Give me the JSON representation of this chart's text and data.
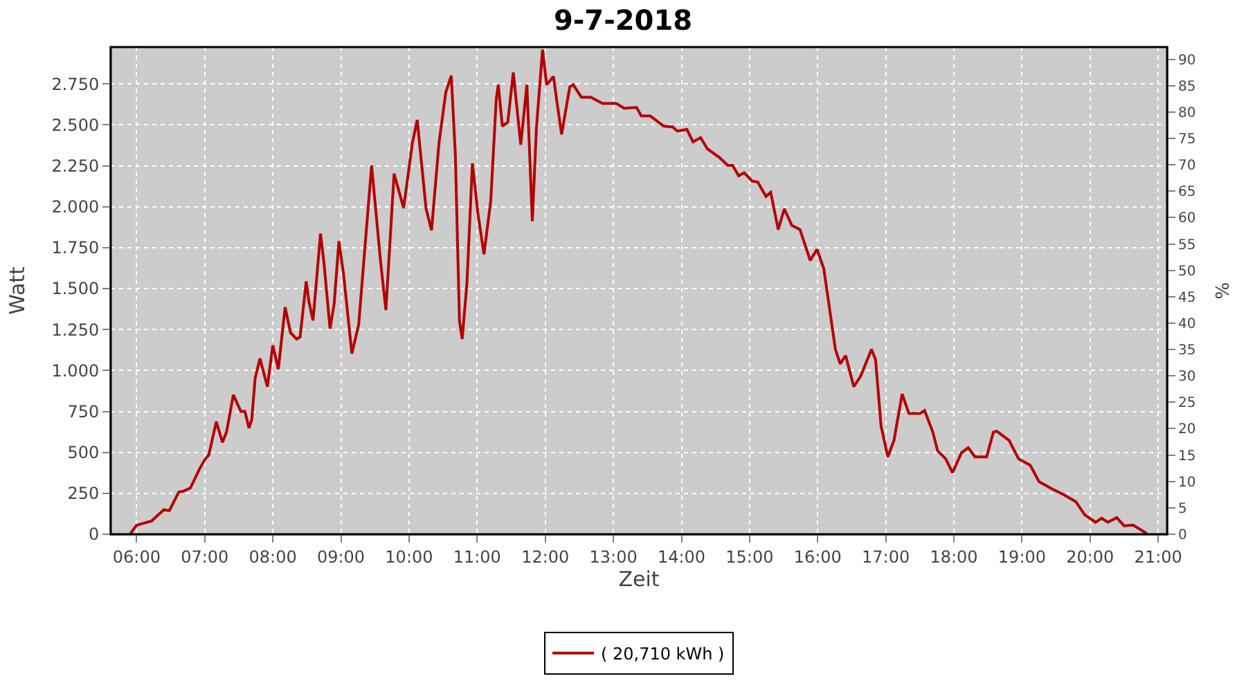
{
  "chart_data": {
    "type": "line",
    "title": "9-7-2018",
    "xlabel": "Zeit",
    "ylabel": "Watt",
    "y2label": "%",
    "xlim": [
      5.62,
      21.13
    ],
    "xticks": [
      {
        "value": 6,
        "label": "06:00"
      },
      {
        "value": 7,
        "label": "07:00"
      },
      {
        "value": 8,
        "label": "08:00"
      },
      {
        "value": 9,
        "label": "09:00"
      },
      {
        "value": 10,
        "label": "10:00"
      },
      {
        "value": 11,
        "label": "11:00"
      },
      {
        "value": 12,
        "label": "12:00"
      },
      {
        "value": 13,
        "label": "13:00"
      },
      {
        "value": 14,
        "label": "14:00"
      },
      {
        "value": 15,
        "label": "15:00"
      },
      {
        "value": 16,
        "label": "16:00"
      },
      {
        "value": 17,
        "label": "17:00"
      },
      {
        "value": 18,
        "label": "18:00"
      },
      {
        "value": 19,
        "label": "19:00"
      },
      {
        "value": 20,
        "label": "20:00"
      },
      {
        "value": 21,
        "label": "21:00"
      }
    ],
    "ylim": [
      0,
      2975
    ],
    "yticks": [
      0,
      250,
      500,
      750,
      {
        "value": 1000,
        "label": "1.000"
      },
      {
        "value": 1250,
        "label": "1.250"
      },
      {
        "value": 1500,
        "label": "1.500"
      },
      {
        "value": 1750,
        "label": "1.750"
      },
      {
        "value": 2000,
        "label": "2.000"
      },
      {
        "value": 2250,
        "label": "2.250"
      },
      {
        "value": 2500,
        "label": "2.500"
      },
      {
        "value": 2750,
        "label": "2.750"
      }
    ],
    "y2lim": [
      0,
      92.3
    ],
    "y2ticks": [
      0,
      5,
      10,
      15,
      20,
      25,
      30,
      35,
      40,
      45,
      50,
      55,
      60,
      65,
      70,
      75,
      80,
      85,
      90
    ],
    "grid": true,
    "legend": "bottom",
    "marker": "none",
    "line_style": "solid",
    "series": [
      {
        "name": "( 20,710 kWh )",
        "color": "#b50000",
        "x": [
          5.91,
          6.0,
          6.11,
          6.22,
          6.32,
          6.4,
          6.48,
          6.62,
          6.69,
          6.79,
          6.92,
          7.0,
          7.06,
          7.17,
          7.26,
          7.32,
          7.42,
          7.53,
          7.59,
          7.65,
          7.69,
          7.74,
          7.81,
          7.92,
          8.0,
          8.08,
          8.18,
          8.26,
          8.35,
          8.4,
          8.49,
          8.53,
          8.59,
          8.7,
          8.75,
          8.84,
          8.9,
          8.97,
          9.04,
          9.16,
          9.26,
          9.45,
          9.58,
          9.66,
          9.78,
          9.92,
          10.05,
          10.12,
          10.25,
          10.33,
          10.44,
          10.54,
          10.62,
          10.68,
          10.74,
          10.78,
          10.85,
          10.93,
          11.01,
          11.1,
          11.2,
          11.28,
          11.31,
          11.37,
          11.45,
          11.53,
          11.64,
          11.73,
          11.81,
          11.87,
          11.96,
          12.02,
          12.12,
          12.17,
          12.24,
          12.36,
          12.41,
          12.53,
          12.67,
          12.84,
          13.04,
          13.16,
          13.34,
          13.41,
          13.54,
          13.74,
          13.87,
          13.94,
          14.08,
          14.17,
          14.28,
          14.38,
          14.55,
          14.68,
          14.75,
          14.84,
          14.92,
          15.04,
          15.12,
          15.24,
          15.31,
          15.42,
          15.51,
          15.62,
          15.74,
          15.89,
          15.99,
          16.09,
          16.26,
          16.33,
          16.41,
          16.53,
          16.63,
          16.79,
          16.85,
          16.93,
          17.03,
          17.12,
          17.24,
          17.34,
          17.5,
          17.57,
          17.69,
          17.76,
          17.88,
          17.98,
          18.11,
          18.21,
          18.31,
          18.48,
          18.58,
          18.63,
          18.81,
          18.95,
          19.12,
          19.25,
          19.45,
          19.62,
          19.79,
          19.92,
          20.08,
          20.17,
          20.26,
          20.39,
          20.5,
          20.63,
          20.83
        ],
        "values": [
          5,
          55,
          68,
          81,
          119,
          149,
          144,
          258,
          263,
          283,
          396,
          455,
          485,
          687,
          561,
          624,
          851,
          750,
          750,
          649,
          699,
          952,
          1073,
          901,
          1154,
          1007,
          1386,
          1230,
          1192,
          1204,
          1545,
          1419,
          1305,
          1836,
          1659,
          1255,
          1406,
          1790,
          1583,
          1103,
          1280,
          2252,
          1672,
          1369,
          2202,
          1992,
          2391,
          2530,
          1987,
          1856,
          2391,
          2699,
          2800,
          2315,
          1305,
          1192,
          1533,
          2265,
          1962,
          1709,
          2038,
          2656,
          2745,
          2492,
          2517,
          2820,
          2379,
          2745,
          1911,
          2480,
          2959,
          2745,
          2795,
          2644,
          2442,
          2732,
          2745,
          2669,
          2669,
          2631,
          2631,
          2601,
          2606,
          2555,
          2555,
          2492,
          2487,
          2462,
          2472,
          2396,
          2422,
          2353,
          2303,
          2252,
          2252,
          2189,
          2207,
          2156,
          2151,
          2063,
          2088,
          1861,
          1987,
          1886,
          1861,
          1672,
          1740,
          1621,
          1129,
          1040,
          1091,
          901,
          965,
          1129,
          1066,
          662,
          472,
          573,
          856,
          737,
          737,
          755,
          624,
          510,
          460,
          376,
          497,
          528,
          472,
          472,
          624,
          629,
          573,
          460,
          422,
          321,
          275,
          240,
          199,
          119,
          73,
          98,
          73,
          101,
          51,
          56,
          5
        ]
      }
    ]
  }
}
